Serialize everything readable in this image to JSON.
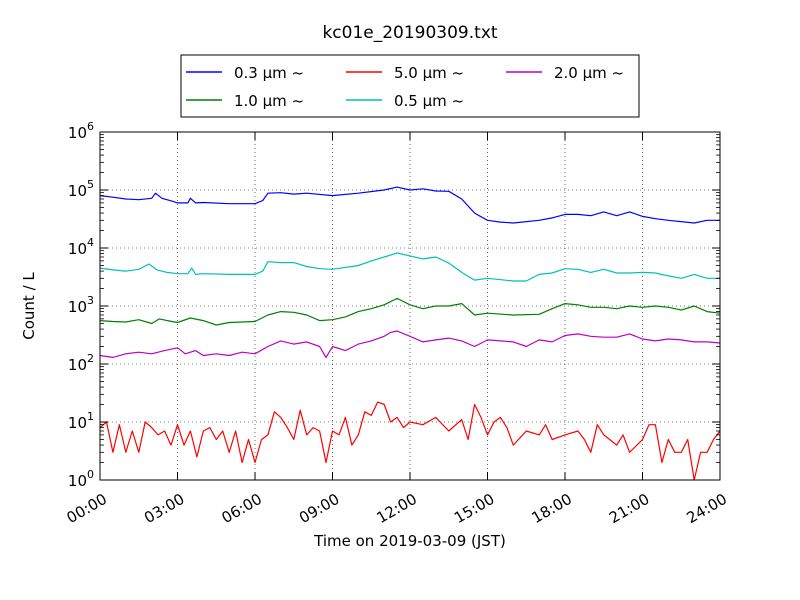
{
  "chart_data": {
    "type": "line",
    "title": "kc01e_20190309.txt",
    "xlabel": "Time on 2019-03-09 (JST)",
    "ylabel": "Count / L",
    "y_scale": "log",
    "ylim": [
      1,
      1000000
    ],
    "xlim": [
      0,
      24
    ],
    "x_ticks": [
      {
        "value": 0,
        "label": "00:00"
      },
      {
        "value": 3,
        "label": "03:00"
      },
      {
        "value": 6,
        "label": "06:00"
      },
      {
        "value": 9,
        "label": "09:00"
      },
      {
        "value": 12,
        "label": "12:00"
      },
      {
        "value": 15,
        "label": "15:00"
      },
      {
        "value": 18,
        "label": "18:00"
      },
      {
        "value": 21,
        "label": "21:00"
      },
      {
        "value": 24,
        "label": "24:00"
      }
    ],
    "y_ticks": [
      {
        "value": 1,
        "base": "10",
        "exp": "0"
      },
      {
        "value": 10,
        "base": "10",
        "exp": "1"
      },
      {
        "value": 100,
        "base": "10",
        "exp": "2"
      },
      {
        "value": 1000,
        "base": "10",
        "exp": "3"
      },
      {
        "value": 10000,
        "base": "10",
        "exp": "4"
      },
      {
        "value": 100000,
        "base": "10",
        "exp": "5"
      },
      {
        "value": 1000000,
        "base": "10",
        "exp": "6"
      }
    ],
    "grid": true,
    "legend_position": "top-center",
    "series": [
      {
        "name": "0.3 μm ~",
        "color": "#0000ff",
        "points": [
          [
            0,
            80000
          ],
          [
            0.5,
            75000
          ],
          [
            1,
            70000
          ],
          [
            1.5,
            68000
          ],
          [
            2,
            72000
          ],
          [
            2.15,
            88000
          ],
          [
            2.4,
            72000
          ],
          [
            2.8,
            64000
          ],
          [
            3,
            60000
          ],
          [
            3.4,
            60000
          ],
          [
            3.5,
            72000
          ],
          [
            3.7,
            60000
          ],
          [
            4,
            61000
          ],
          [
            5,
            58000
          ],
          [
            6,
            58000
          ],
          [
            6.3,
            66000
          ],
          [
            6.5,
            88000
          ],
          [
            7,
            90000
          ],
          [
            7.5,
            85000
          ],
          [
            8,
            88000
          ],
          [
            9,
            80000
          ],
          [
            10,
            88000
          ],
          [
            11,
            100000
          ],
          [
            11.5,
            112000
          ],
          [
            12,
            100000
          ],
          [
            12.5,
            105000
          ],
          [
            13,
            96000
          ],
          [
            13.5,
            95000
          ],
          [
            14,
            70000
          ],
          [
            14.5,
            40000
          ],
          [
            15,
            30000
          ],
          [
            15.5,
            28000
          ],
          [
            16,
            27000
          ],
          [
            17,
            30000
          ],
          [
            17.5,
            33000
          ],
          [
            18,
            38000
          ],
          [
            18.5,
            38000
          ],
          [
            19,
            36000
          ],
          [
            19.5,
            42000
          ],
          [
            20,
            36000
          ],
          [
            20.5,
            42000
          ],
          [
            21,
            35000
          ],
          [
            21.5,
            32000
          ],
          [
            22,
            30000
          ],
          [
            23,
            27000
          ],
          [
            23.5,
            30000
          ],
          [
            24,
            30000
          ]
        ]
      },
      {
        "name": "1.0 μm ~",
        "color": "#008000",
        "points": [
          [
            0,
            560
          ],
          [
            0.5,
            540
          ],
          [
            1,
            530
          ],
          [
            1.5,
            580
          ],
          [
            2,
            500
          ],
          [
            2.3,
            600
          ],
          [
            2.6,
            560
          ],
          [
            3,
            520
          ],
          [
            3.5,
            620
          ],
          [
            4,
            560
          ],
          [
            4.5,
            470
          ],
          [
            5,
            520
          ],
          [
            6,
            540
          ],
          [
            6.5,
            700
          ],
          [
            7,
            800
          ],
          [
            7.5,
            780
          ],
          [
            8,
            700
          ],
          [
            8.5,
            560
          ],
          [
            9,
            580
          ],
          [
            9.5,
            650
          ],
          [
            10,
            800
          ],
          [
            10.5,
            900
          ],
          [
            11,
            1050
          ],
          [
            11.5,
            1350
          ],
          [
            12,
            1050
          ],
          [
            12.5,
            900
          ],
          [
            13,
            1000
          ],
          [
            13.5,
            1000
          ],
          [
            14,
            1100
          ],
          [
            14.5,
            700
          ],
          [
            15,
            750
          ],
          [
            16,
            700
          ],
          [
            17,
            720
          ],
          [
            17.5,
            900
          ],
          [
            18,
            1100
          ],
          [
            18.5,
            1050
          ],
          [
            19,
            950
          ],
          [
            19.5,
            950
          ],
          [
            20,
            900
          ],
          [
            20.5,
            1000
          ],
          [
            21,
            950
          ],
          [
            21.5,
            1000
          ],
          [
            22,
            950
          ],
          [
            22.5,
            850
          ],
          [
            23,
            1000
          ],
          [
            23.5,
            800
          ],
          [
            24,
            750
          ]
        ]
      },
      {
        "name": "5.0 μm ~",
        "color": "#ff0000",
        "points": [
          [
            0,
            8
          ],
          [
            0.25,
            10
          ],
          [
            0.5,
            3
          ],
          [
            0.75,
            9
          ],
          [
            1,
            3
          ],
          [
            1.25,
            7
          ],
          [
            1.5,
            3
          ],
          [
            1.75,
            10
          ],
          [
            2,
            8
          ],
          [
            2.25,
            6
          ],
          [
            2.5,
            7
          ],
          [
            2.75,
            4
          ],
          [
            3,
            9
          ],
          [
            3.25,
            4
          ],
          [
            3.5,
            7
          ],
          [
            3.75,
            2.5
          ],
          [
            4,
            7
          ],
          [
            4.25,
            8
          ],
          [
            4.5,
            5
          ],
          [
            4.75,
            7
          ],
          [
            5,
            3
          ],
          [
            5.25,
            7
          ],
          [
            5.5,
            2
          ],
          [
            5.75,
            5
          ],
          [
            6,
            2
          ],
          [
            6.25,
            5
          ],
          [
            6.5,
            6
          ],
          [
            6.75,
            15
          ],
          [
            7,
            12
          ],
          [
            7.25,
            8
          ],
          [
            7.5,
            5
          ],
          [
            7.75,
            16
          ],
          [
            8,
            6
          ],
          [
            8.25,
            8
          ],
          [
            8.5,
            7
          ],
          [
            8.75,
            2
          ],
          [
            9,
            7
          ],
          [
            9.25,
            6
          ],
          [
            9.5,
            12
          ],
          [
            9.75,
            4
          ],
          [
            10,
            6
          ],
          [
            10.25,
            15
          ],
          [
            10.5,
            13
          ],
          [
            10.75,
            22
          ],
          [
            11,
            20
          ],
          [
            11.25,
            10
          ],
          [
            11.5,
            12
          ],
          [
            11.75,
            8
          ],
          [
            12,
            10
          ],
          [
            12.5,
            9
          ],
          [
            13,
            12
          ],
          [
            13.5,
            7
          ],
          [
            14,
            11
          ],
          [
            14.25,
            5
          ],
          [
            14.5,
            20
          ],
          [
            14.75,
            12
          ],
          [
            15,
            6
          ],
          [
            15.25,
            10
          ],
          [
            15.5,
            12
          ],
          [
            15.75,
            8
          ],
          [
            16,
            4
          ],
          [
            16.5,
            7
          ],
          [
            17,
            6
          ],
          [
            17.25,
            9
          ],
          [
            17.5,
            5
          ],
          [
            18,
            6
          ],
          [
            18.5,
            7
          ],
          [
            18.75,
            5
          ],
          [
            19,
            3
          ],
          [
            19.25,
            9
          ],
          [
            19.5,
            6
          ],
          [
            20,
            4
          ],
          [
            20.25,
            6
          ],
          [
            20.5,
            3
          ],
          [
            21,
            5
          ],
          [
            21.25,
            9
          ],
          [
            21.5,
            9
          ],
          [
            21.75,
            2
          ],
          [
            22,
            5
          ],
          [
            22.25,
            3
          ],
          [
            22.5,
            3
          ],
          [
            22.75,
            5
          ],
          [
            23,
            1
          ],
          [
            23.25,
            3
          ],
          [
            23.5,
            3
          ],
          [
            23.75,
            5
          ],
          [
            24,
            7
          ]
        ]
      },
      {
        "name": "0.5 μm ~",
        "color": "#00bfbf",
        "points": [
          [
            0,
            4500
          ],
          [
            0.5,
            4200
          ],
          [
            1,
            4000
          ],
          [
            1.5,
            4300
          ],
          [
            1.9,
            5300
          ],
          [
            2.2,
            4200
          ],
          [
            2.6,
            3800
          ],
          [
            3,
            3600
          ],
          [
            3.4,
            3600
          ],
          [
            3.55,
            4500
          ],
          [
            3.7,
            3500
          ],
          [
            4,
            3600
          ],
          [
            5,
            3500
          ],
          [
            6,
            3500
          ],
          [
            6.3,
            4000
          ],
          [
            6.5,
            5800
          ],
          [
            7,
            5600
          ],
          [
            7.5,
            5600
          ],
          [
            8,
            4800
          ],
          [
            8.5,
            4400
          ],
          [
            9,
            4300
          ],
          [
            10,
            5000
          ],
          [
            10.5,
            6000
          ],
          [
            11,
            7000
          ],
          [
            11.5,
            8200
          ],
          [
            12,
            7300
          ],
          [
            12.5,
            6500
          ],
          [
            13,
            7000
          ],
          [
            13.5,
            5500
          ],
          [
            14,
            3800
          ],
          [
            14.5,
            2800
          ],
          [
            15,
            3000
          ],
          [
            16,
            2700
          ],
          [
            16.5,
            2700
          ],
          [
            17,
            3500
          ],
          [
            17.5,
            3700
          ],
          [
            18,
            4400
          ],
          [
            18.5,
            4300
          ],
          [
            19,
            3800
          ],
          [
            19.5,
            4300
          ],
          [
            20,
            3700
          ],
          [
            20.5,
            3700
          ],
          [
            21,
            3800
          ],
          [
            21.5,
            3700
          ],
          [
            22,
            3300
          ],
          [
            22.5,
            3000
          ],
          [
            23,
            3500
          ],
          [
            23.5,
            3000
          ],
          [
            24,
            3000
          ]
        ]
      },
      {
        "name": "2.0 μm ~",
        "color": "#bf00bf",
        "points": [
          [
            0,
            140
          ],
          [
            0.5,
            130
          ],
          [
            1,
            150
          ],
          [
            1.5,
            160
          ],
          [
            2,
            150
          ],
          [
            2.5,
            170
          ],
          [
            3,
            190
          ],
          [
            3.3,
            150
          ],
          [
            3.7,
            170
          ],
          [
            4,
            140
          ],
          [
            4.5,
            150
          ],
          [
            5,
            140
          ],
          [
            5.5,
            160
          ],
          [
            6,
            150
          ],
          [
            6.5,
            200
          ],
          [
            7,
            250
          ],
          [
            7.5,
            220
          ],
          [
            8,
            240
          ],
          [
            8.5,
            200
          ],
          [
            8.75,
            130
          ],
          [
            9,
            200
          ],
          [
            9.5,
            170
          ],
          [
            10,
            220
          ],
          [
            10.5,
            250
          ],
          [
            11,
            300
          ],
          [
            11.25,
            350
          ],
          [
            11.5,
            370
          ],
          [
            12,
            300
          ],
          [
            12.5,
            240
          ],
          [
            13,
            260
          ],
          [
            13.5,
            280
          ],
          [
            14,
            250
          ],
          [
            14.5,
            200
          ],
          [
            15,
            260
          ],
          [
            15.5,
            250
          ],
          [
            16,
            240
          ],
          [
            16.5,
            200
          ],
          [
            17,
            260
          ],
          [
            17.5,
            240
          ],
          [
            18,
            310
          ],
          [
            18.5,
            330
          ],
          [
            19,
            300
          ],
          [
            19.5,
            290
          ],
          [
            20,
            290
          ],
          [
            20.5,
            330
          ],
          [
            21,
            270
          ],
          [
            21.5,
            250
          ],
          [
            22,
            270
          ],
          [
            22.5,
            260
          ],
          [
            23,
            240
          ],
          [
            23.5,
            240
          ],
          [
            24,
            230
          ]
        ]
      }
    ]
  }
}
